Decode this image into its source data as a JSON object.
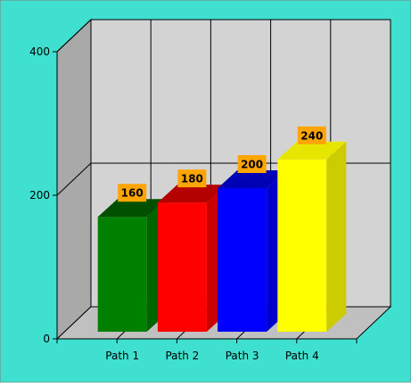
{
  "chart_data": {
    "type": "bar",
    "categories": [
      "Path 1",
      "Path 2",
      "Path 3",
      "Path 4"
    ],
    "values": [
      160,
      180,
      200,
      240
    ],
    "data_labels": [
      "160",
      "180",
      "200",
      "240"
    ],
    "title": "",
    "xlabel": "",
    "ylabel": "",
    "ylim": [
      0,
      400
    ],
    "yticks": [
      0,
      200,
      400
    ],
    "ytick_labels": [
      "0",
      "200",
      "400"
    ],
    "grid": true,
    "legend": "none",
    "three_d": true
  },
  "colors": {
    "background": "#40E0D0",
    "back_wall": "#D3D3D3",
    "side_wall": "#A9A9A9",
    "floor": "#C0C0C0",
    "label_box": "#FFA500",
    "bars": [
      "#008000",
      "#FF0000",
      "#0000FF",
      "#FFFF00"
    ],
    "bar_sides": [
      "#006400",
      "#C80000",
      "#0000C8",
      "#CCCC00"
    ],
    "bar_tops": [
      "#005000",
      "#B40000",
      "#0000B4",
      "#E6E600"
    ]
  }
}
